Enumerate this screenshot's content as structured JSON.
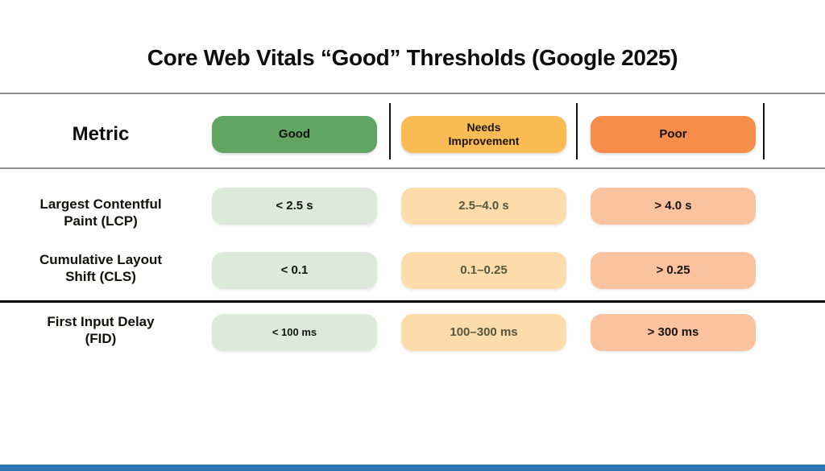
{
  "title": "Core Web Vitals “Good” Thresholds (Google 2025)",
  "table": {
    "metric_header": "Metric",
    "columns": [
      {
        "id": "good",
        "label": "Good"
      },
      {
        "id": "needs_improvement",
        "label": "Needs\nImprovement"
      },
      {
        "id": "poor",
        "label": "Poor"
      }
    ]
  },
  "rows": [
    {
      "metric": "Largest Contentful\nPaint (LCP)",
      "good": "< 2.5 s",
      "needs_improvement": "2.5–4.0 s",
      "poor": "> 4.0 s"
    },
    {
      "metric": "Cumulative Layout\nShift (CLS)",
      "good": "< 0.1",
      "needs_improvement": "0.1–0.25",
      "poor": "> 0.25"
    },
    {
      "metric": "First Input Delay\n(FID)",
      "good": "< 100 ms",
      "needs_improvement": "100–300 ms",
      "poor": "> 300 ms"
    }
  ],
  "colors": {
    "header_good": "#62a563",
    "header_needs_improvement": "#f9bc55",
    "header_poor": "#f78d4a",
    "cell_good": "#dcead9",
    "cell_needs_improvement": "#fcdcab",
    "cell_poor": "#fac29e",
    "separator_gray": "#8e8e8e",
    "separator_black": "#000000",
    "footer_accent_bar": "#2e75b6"
  },
  "chart_data": {
    "type": "table",
    "title": "Core Web Vitals “Good” Thresholds (Google 2025)",
    "columns": [
      "Metric",
      "Good",
      "Needs Improvement",
      "Poor"
    ],
    "rows": [
      [
        "Largest Contentful Paint (LCP)",
        "< 2.5 s",
        "2.5–4.0 s",
        "> 4.0 s"
      ],
      [
        "Cumulative Layout Shift (CLS)",
        "< 0.1",
        "0.1–0.25",
        "> 0.25"
      ],
      [
        "First Input Delay (FID)",
        "< 100 ms",
        "100–300 ms",
        "> 300 ms"
      ]
    ]
  }
}
